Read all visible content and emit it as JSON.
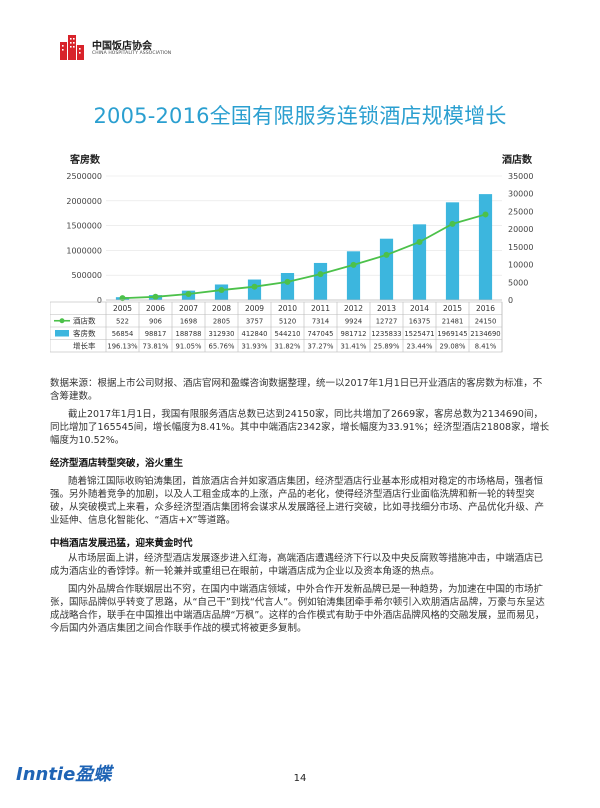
{
  "header": {
    "org_cn": "中国饭店协会",
    "org_en": "CHINA HOSPITALITY ASSOCIATION",
    "logo_icon": "hotel-building-icon"
  },
  "title": "2005-2016全国有限服务连锁酒店规模增长",
  "chart_data": {
    "type": "bar",
    "categories": [
      "2005",
      "2006",
      "2007",
      "2008",
      "2009",
      "2010",
      "2011",
      "2012",
      "2013",
      "2014",
      "2015",
      "2016"
    ],
    "series": [
      {
        "name": "客房数",
        "type": "bar",
        "axis": "left",
        "color": "#3cb6de",
        "values": [
          56854,
          98817,
          188788,
          312930,
          412840,
          544210,
          747045,
          981712,
          1235833,
          1525471,
          1969145,
          2134690
        ]
      },
      {
        "name": "酒店数",
        "type": "line",
        "axis": "right",
        "color": "#4cc14a",
        "values": [
          522,
          906,
          1698,
          2805,
          3757,
          5120,
          7314,
          9924,
          12727,
          16375,
          21481,
          24150
        ]
      }
    ],
    "left_axis": {
      "label": "客房数",
      "range": [
        0,
        2500000
      ],
      "ticks": [
        "2500000",
        "2000000",
        "1500000",
        "1000000",
        "500000",
        "0"
      ]
    },
    "right_axis": {
      "label": "酒店数",
      "range": [
        0,
        35000
      ],
      "ticks": [
        "35000",
        "30000",
        "25000",
        "20000",
        "15000",
        "10000",
        "5000",
        "0"
      ]
    },
    "table": {
      "rows": [
        {
          "label": "酒店数",
          "marker": "line",
          "color": "#4cc14a",
          "cells": [
            "522",
            "906",
            "1698",
            "2805",
            "3757",
            "5120",
            "7314",
            "9924",
            "12727",
            "16375",
            "21481",
            "24150"
          ]
        },
        {
          "label": "客房数",
          "marker": "bar",
          "color": "#3cb6de",
          "cells": [
            "56854",
            "98817",
            "188788",
            "312930",
            "412840",
            "544210",
            "747045",
            "981712",
            "1235833",
            "1525471",
            "1969145",
            "2134690"
          ]
        },
        {
          "label": "增长率",
          "marker": "none",
          "color": "",
          "cells": [
            "196.13%",
            "73.81%",
            "91.05%",
            "65.76%",
            "31.93%",
            "31.82%",
            "37.27%",
            "31.41%",
            "25.89%",
            "23.44%",
            "29.08%",
            "8.41%"
          ]
        }
      ]
    }
  },
  "body": {
    "source": "数据来源：根据上市公司财报、酒店官网和盈蝶咨询数据整理，统一以2017年1月1日已开业酒店的客房数为标准，不含筹建数。",
    "para1": "截止2017年1月1日，我国有限服务酒店总数已达到24150家，同比共增加了2669家，客房总数为2134690间，同比增加了165545间，增长幅度为8.41%。其中中端酒店2342家，增长幅度为33.91%；经济型酒店21808家，增长幅度为10.52%。",
    "heading1": "经济型酒店转型突破，浴火重生",
    "para2": "随着锦江国际收购铂涛集团，首旅酒店合并如家酒店集团，经济型酒店行业基本形成相对稳定的市场格局，强者恒强。另外随着竞争的加剧，以及人工租金成本的上涨，产品的老化，使得经济型酒店行业面临洗牌和新一轮的转型突破，从突破模式上来看，众多经济型酒店集团将会谋求从发展路径上进行突破，比如寻找细分市场、产品优化升级、产业延伸、信息化智能化、“酒店+X”等道路。",
    "heading2": "中档酒店发展迅猛，迎来黄金时代",
    "para3": "从市场层面上讲，经济型酒店发展逐步进入红海，高端酒店遭遇经济下行以及中央反腐败等措施冲击，中端酒店已成为酒店业的香饽饽。新一轮兼并或重组已在眼前，中端酒店成为企业以及资本角逐的热点。",
    "para4": "国内外品牌合作联姻层出不穷，在国内中端酒店领域，中外合作开发新品牌已是一种趋势，为加速在中国的市场扩张，国际品牌似乎转变了思路，从“自己干”到找“代言人”。例如铂涛集团牵手希尔顿引入欢朋酒店品牌，万豪与东呈达成战略合作，联手在中国推出中端酒店品牌“万枫”。这样的合作模式有助于中外酒店品牌风格的交融发展，显而易见，今后国内外酒店集团之间合作联手作战的模式将被更多复制。"
  },
  "footer": {
    "brand": "Inntie盈蝶",
    "page": "14"
  }
}
